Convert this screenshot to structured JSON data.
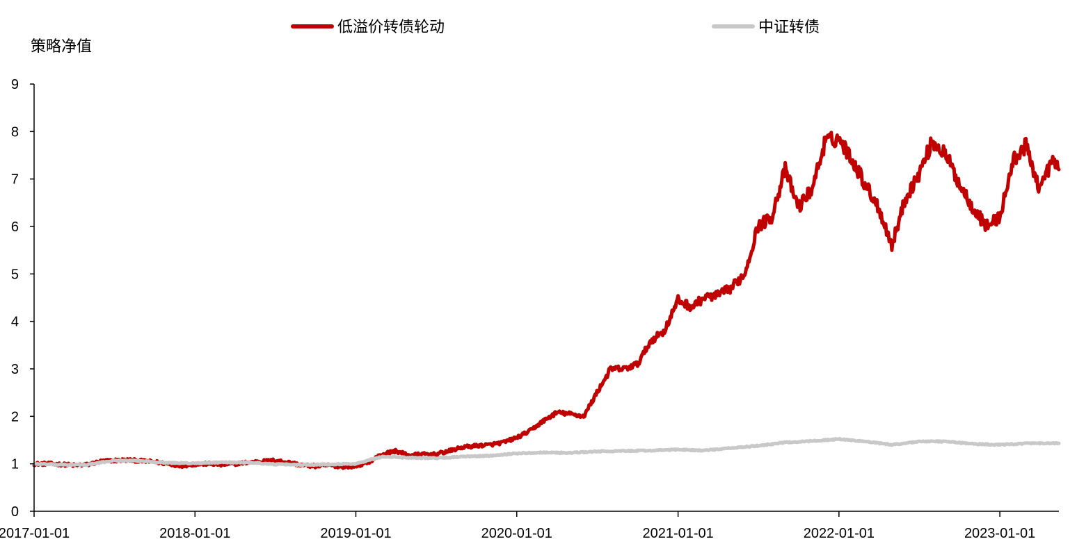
{
  "chart_data": {
    "type": "line",
    "title": "",
    "xlabel": "",
    "ylabel": "策略净值",
    "ylim": [
      0,
      9
    ],
    "xlim": [
      "2017-01-01",
      "2023-05-15"
    ],
    "grid": false,
    "legend_position": "top",
    "y_ticks": [
      "0",
      "1",
      "2",
      "3",
      "4",
      "5",
      "6",
      "7",
      "8",
      "9"
    ],
    "x_ticks": [
      {
        "date": "2017-01-01",
        "label": "2017-01-01"
      },
      {
        "date": "2018-01-01",
        "label": "2018-01-01"
      },
      {
        "date": "2019-01-01",
        "label": "2019-01-01"
      },
      {
        "date": "2020-01-01",
        "label": "2020-01-01"
      },
      {
        "date": "2021-01-01",
        "label": "2021-01-01"
      },
      {
        "date": "2022-01-01",
        "label": "2022-01-01"
      },
      {
        "date": "2023-01-01",
        "label": "2023-01-01"
      }
    ],
    "series": [
      {
        "name": "低溢价转债轮动",
        "color": "#C00000",
        "points": [
          [
            "2017-01-01",
            1.0
          ],
          [
            "2017-02-01",
            1.0
          ],
          [
            "2017-03-01",
            0.99
          ],
          [
            "2017-04-01",
            0.97
          ],
          [
            "2017-05-01",
            0.98
          ],
          [
            "2017-06-01",
            1.05
          ],
          [
            "2017-07-01",
            1.07
          ],
          [
            "2017-08-01",
            1.08
          ],
          [
            "2017-09-01",
            1.06
          ],
          [
            "2017-10-01",
            1.04
          ],
          [
            "2017-11-01",
            1.0
          ],
          [
            "2017-12-01",
            0.96
          ],
          [
            "2018-01-01",
            0.99
          ],
          [
            "2018-02-01",
            1.0
          ],
          [
            "2018-03-01",
            0.98
          ],
          [
            "2018-04-01",
            1.0
          ],
          [
            "2018-05-01",
            1.03
          ],
          [
            "2018-06-01",
            1.05
          ],
          [
            "2018-07-01",
            1.07
          ],
          [
            "2018-08-01",
            1.03
          ],
          [
            "2018-09-01",
            0.97
          ],
          [
            "2018-10-01",
            0.95
          ],
          [
            "2018-11-01",
            0.97
          ],
          [
            "2018-12-01",
            0.94
          ],
          [
            "2019-01-01",
            0.95
          ],
          [
            "2019-02-01",
            1.05
          ],
          [
            "2019-03-01",
            1.2
          ],
          [
            "2019-04-01",
            1.27
          ],
          [
            "2019-05-01",
            1.18
          ],
          [
            "2019-06-01",
            1.2
          ],
          [
            "2019-07-01",
            1.2
          ],
          [
            "2019-08-01",
            1.27
          ],
          [
            "2019-09-01",
            1.35
          ],
          [
            "2019-10-01",
            1.38
          ],
          [
            "2019-11-01",
            1.4
          ],
          [
            "2019-12-01",
            1.45
          ],
          [
            "2020-01-01",
            1.55
          ],
          [
            "2020-02-01",
            1.7
          ],
          [
            "2020-03-01",
            1.9
          ],
          [
            "2020-04-01",
            2.08
          ],
          [
            "2020-05-01",
            2.05
          ],
          [
            "2020-06-01",
            2.0
          ],
          [
            "2020-07-01",
            2.5
          ],
          [
            "2020-08-01",
            3.0
          ],
          [
            "2020-09-01",
            3.0
          ],
          [
            "2020-10-01",
            3.1
          ],
          [
            "2020-11-01",
            3.6
          ],
          [
            "2020-12-01",
            3.8
          ],
          [
            "2021-01-01",
            4.45
          ],
          [
            "2021-02-01",
            4.3
          ],
          [
            "2021-03-01",
            4.5
          ],
          [
            "2021-04-01",
            4.55
          ],
          [
            "2021-05-01",
            4.7
          ],
          [
            "2021-06-01",
            5.0
          ],
          [
            "2021-07-01",
            6.0
          ],
          [
            "2021-08-01",
            6.2
          ],
          [
            "2021-09-01",
            7.2
          ],
          [
            "2021-10-01",
            6.4
          ],
          [
            "2021-11-01",
            6.8
          ],
          [
            "2021-12-01",
            7.8
          ],
          [
            "2022-01-01",
            7.85
          ],
          [
            "2022-02-01",
            7.4
          ],
          [
            "2022-03-01",
            6.9
          ],
          [
            "2022-04-01",
            6.4
          ],
          [
            "2022-05-01",
            5.6
          ],
          [
            "2022-06-01",
            6.6
          ],
          [
            "2022-07-01",
            7.1
          ],
          [
            "2022-08-01",
            7.8
          ],
          [
            "2022-09-01",
            7.5
          ],
          [
            "2022-10-01",
            6.9
          ],
          [
            "2022-11-01",
            6.4
          ],
          [
            "2022-12-01",
            6.0
          ],
          [
            "2023-01-01",
            6.2
          ],
          [
            "2023-02-01",
            7.4
          ],
          [
            "2023-03-01",
            7.7
          ],
          [
            "2023-04-01",
            6.8
          ],
          [
            "2023-05-01",
            7.4
          ],
          [
            "2023-05-15",
            7.2
          ]
        ]
      },
      {
        "name": "中证转债",
        "color": "#C8C8C8",
        "points": [
          [
            "2017-01-01",
            1.0
          ],
          [
            "2017-03-01",
            0.98
          ],
          [
            "2017-05-01",
            0.98
          ],
          [
            "2017-07-01",
            1.07
          ],
          [
            "2017-09-01",
            1.06
          ],
          [
            "2017-11-01",
            1.02
          ],
          [
            "2018-01-01",
            1.01
          ],
          [
            "2018-03-01",
            1.03
          ],
          [
            "2018-05-01",
            1.03
          ],
          [
            "2018-07-01",
            0.99
          ],
          [
            "2018-09-01",
            0.98
          ],
          [
            "2018-11-01",
            0.99
          ],
          [
            "2019-01-01",
            1.0
          ],
          [
            "2019-03-01",
            1.15
          ],
          [
            "2019-05-01",
            1.13
          ],
          [
            "2019-07-01",
            1.12
          ],
          [
            "2019-09-01",
            1.15
          ],
          [
            "2019-11-01",
            1.17
          ],
          [
            "2020-01-01",
            1.22
          ],
          [
            "2020-03-01",
            1.24
          ],
          [
            "2020-05-01",
            1.23
          ],
          [
            "2020-07-01",
            1.26
          ],
          [
            "2020-09-01",
            1.27
          ],
          [
            "2020-11-01",
            1.28
          ],
          [
            "2021-01-01",
            1.3
          ],
          [
            "2021-03-01",
            1.28
          ],
          [
            "2021-05-01",
            1.33
          ],
          [
            "2021-07-01",
            1.38
          ],
          [
            "2021-09-01",
            1.45
          ],
          [
            "2021-11-01",
            1.48
          ],
          [
            "2022-01-01",
            1.52
          ],
          [
            "2022-03-01",
            1.47
          ],
          [
            "2022-05-01",
            1.4
          ],
          [
            "2022-07-01",
            1.47
          ],
          [
            "2022-09-01",
            1.47
          ],
          [
            "2022-11-01",
            1.42
          ],
          [
            "2023-01-01",
            1.4
          ],
          [
            "2023-03-01",
            1.43
          ],
          [
            "2023-05-15",
            1.43
          ]
        ]
      }
    ]
  }
}
